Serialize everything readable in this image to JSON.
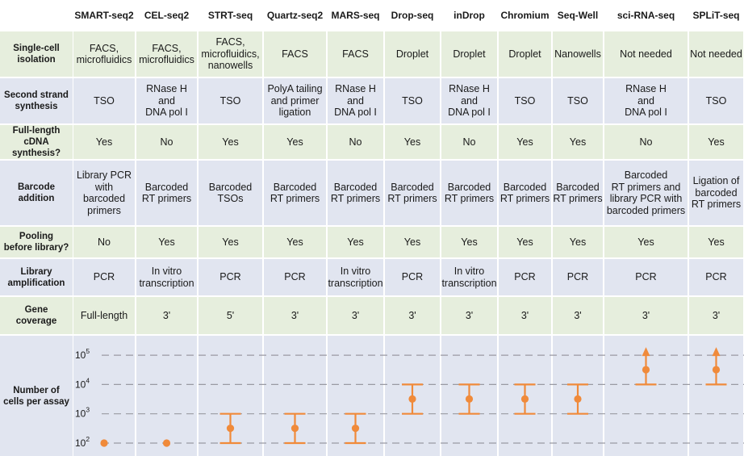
{
  "table": {
    "columns": [
      "SMART-seq2",
      "CEL-seq2",
      "STRT-seq",
      "Quartz-seq2",
      "MARS-seq",
      "Drop-seq",
      "inDrop",
      "Chromium",
      "Seq-Well",
      "sci-RNA-seq",
      "SPLiT-seq"
    ],
    "rows": [
      {
        "label": "Single-cell\nisolation",
        "values": [
          "FACS,\nmicrofluidics",
          "FACS,\nmicrofluidics",
          "FACS,\nmicrofluidics,\nnanowells",
          "FACS",
          "FACS",
          "Droplet",
          "Droplet",
          "Droplet",
          "Nanowells",
          "Not needed",
          "Not needed"
        ]
      },
      {
        "label": "Second strand\nsynthesis",
        "values": [
          "TSO",
          "RNase H\nand\nDNA pol I",
          "TSO",
          "PolyA tailing\nand primer\nligation",
          "RNase H\nand\nDNA pol I",
          "TSO",
          "RNase H\nand\nDNA pol I",
          "TSO",
          "TSO",
          "RNase H\nand\nDNA pol I",
          "TSO"
        ]
      },
      {
        "label": "Full-length\ncDNA synthesis?",
        "values": [
          "Yes",
          "No",
          "Yes",
          "Yes",
          "No",
          "Yes",
          "No",
          "Yes",
          "Yes",
          "No",
          "Yes"
        ]
      },
      {
        "label": "Barcode\naddition",
        "values": [
          "Library PCR\nwith barcoded\nprimers",
          "Barcoded\nRT primers",
          "Barcoded\nTSOs",
          "Barcoded\nRT primers",
          "Barcoded\nRT primers",
          "Barcoded\nRT primers",
          "Barcoded\nRT primers",
          "Barcoded\nRT primers",
          "Barcoded\nRT primers",
          "Barcoded\nRT primers  and\nlibrary PCR with\nbarcoded primers",
          "Ligation of\nbarcoded\nRT primers"
        ]
      },
      {
        "label": "Pooling\nbefore library?",
        "values": [
          "No",
          "Yes",
          "Yes",
          "Yes",
          "Yes",
          "Yes",
          "Yes",
          "Yes",
          "Yes",
          "Yes",
          "Yes"
        ]
      },
      {
        "label": "Library\namplification",
        "values": [
          "PCR",
          "In vitro\ntranscription",
          "PCR",
          "PCR",
          "In vitro\ntranscription",
          "PCR",
          "In vitro\ntranscription",
          "PCR",
          "PCR",
          "PCR",
          "PCR"
        ]
      },
      {
        "label": "Gene\ncoverage",
        "values": [
          "Full-length",
          "3'",
          "5'",
          "3'",
          "3'",
          "3'",
          "3'",
          "3'",
          "3'",
          "3'",
          "3'"
        ]
      }
    ]
  },
  "chart_data": {
    "type": "scatter",
    "ylabel": "Number of\ncells per assay",
    "yscale": "log",
    "yticks": [
      {
        "base": "10",
        "exp": "2",
        "value": 100
      },
      {
        "base": "10",
        "exp": "3",
        "value": 1000
      },
      {
        "base": "10",
        "exp": "4",
        "value": 10000
      },
      {
        "base": "10",
        "exp": "5",
        "value": 100000
      }
    ],
    "points": [
      {
        "method": "SMART-seq2",
        "value": 100,
        "low": null,
        "high": null,
        "open_ended": false
      },
      {
        "method": "CEL-seq2",
        "value": 100,
        "low": null,
        "high": null,
        "open_ended": false
      },
      {
        "method": "STRT-seq",
        "value": 320,
        "low": 100,
        "high": 1000,
        "open_ended": false
      },
      {
        "method": "Quartz-seq2",
        "value": 320,
        "low": 100,
        "high": 1000,
        "open_ended": false
      },
      {
        "method": "MARS-seq",
        "value": 320,
        "low": 100,
        "high": 1000,
        "open_ended": false
      },
      {
        "method": "Drop-seq",
        "value": 3200,
        "low": 1000,
        "high": 10000,
        "open_ended": false
      },
      {
        "method": "inDrop",
        "value": 3200,
        "low": 1000,
        "high": 10000,
        "open_ended": false
      },
      {
        "method": "Chromium",
        "value": 3200,
        "low": 1000,
        "high": 10000,
        "open_ended": false
      },
      {
        "method": "Seq-Well",
        "value": 3200,
        "low": 1000,
        "high": 10000,
        "open_ended": false
      },
      {
        "method": "sci-RNA-seq",
        "value": 32000,
        "low": 10000,
        "high": null,
        "open_ended": true
      },
      {
        "method": "SPLiT-seq",
        "value": 32000,
        "low": 10000,
        "high": null,
        "open_ended": true
      }
    ],
    "colors": {
      "marker": "#f08a3a",
      "gridline": "#9a9aa3"
    }
  },
  "colors": {
    "green_row": "#e6eedd",
    "blue_row": "#e1e5f0",
    "header_bg": "#ffffff"
  }
}
